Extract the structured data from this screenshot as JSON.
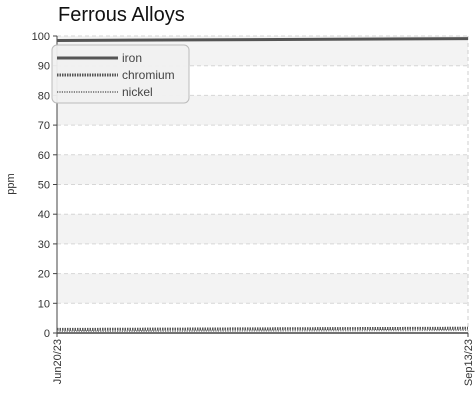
{
  "chart_data": {
    "type": "line",
    "title": "Ferrous Alloys",
    "xlabel": "",
    "ylabel": "ppm",
    "x": [
      "Jun20/23",
      "Sep13/23"
    ],
    "xlim": [
      "Jun20/23",
      "Sep13/23"
    ],
    "ylim": [
      0,
      100
    ],
    "yticks": [
      0,
      10,
      20,
      30,
      40,
      50,
      60,
      70,
      80,
      90,
      100
    ],
    "grid": true,
    "legend_position": "top-left",
    "series": [
      {
        "name": "iron",
        "values": [
          98.5,
          99.1
        ],
        "style": "solid",
        "color": "#555555"
      },
      {
        "name": "chromium",
        "values": [
          1.2,
          1.6
        ],
        "style": "dotted-heavy",
        "color": "#555555"
      },
      {
        "name": "nickel",
        "values": [
          0.6,
          1.0
        ],
        "style": "dotted-light",
        "color": "#888888"
      }
    ]
  }
}
